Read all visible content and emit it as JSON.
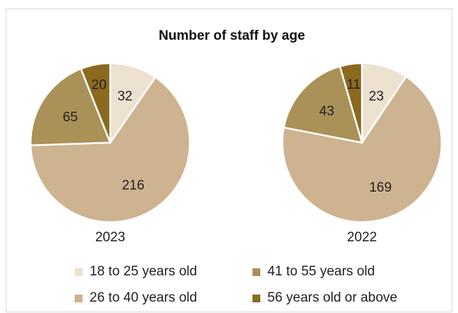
{
  "chart_data": {
    "type": "pie",
    "title": "Number of staff by age",
    "categories": [
      "18 to 25 years old",
      "26 to 40 years old",
      "41 to 55 years old",
      "56 years old or above"
    ],
    "colors": [
      "#ede1d0",
      "#cdb38f",
      "#aa9157",
      "#8b6a1f"
    ],
    "charts": [
      {
        "label": "2023",
        "values": [
          32,
          216,
          65,
          20
        ]
      },
      {
        "label": "2022",
        "values": [
          23,
          169,
          43,
          11
        ]
      }
    ],
    "legend_position": "bottom"
  }
}
